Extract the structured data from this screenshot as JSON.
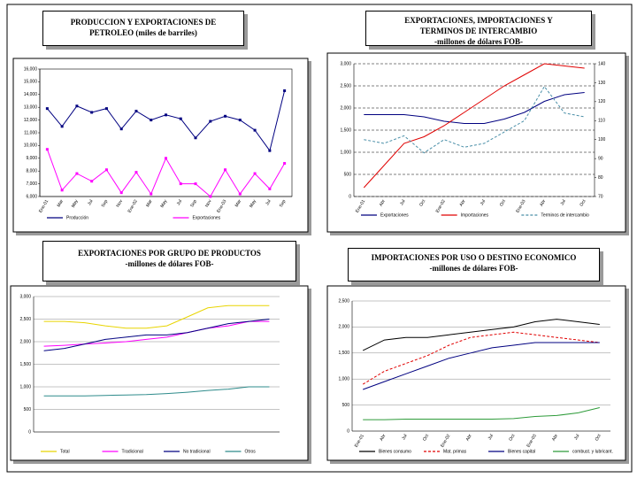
{
  "chart_data": [
    {
      "type": "line",
      "title": "PRODUCCION Y EXPORTACIONES DE PETROLEO (miles de barriles)",
      "categories": [
        "Ene-01",
        "Mar",
        "May",
        "Jul",
        "Sep",
        "Nov",
        "Ene-02",
        "Mar",
        "May",
        "Jul",
        "Sep",
        "Nov",
        "Ene-03",
        "Mar",
        "May",
        "Jul",
        "Sep"
      ],
      "series": [
        {
          "name": "Producción",
          "color": "#000080",
          "values": [
            12900,
            11500,
            13100,
            12600,
            12900,
            11300,
            12700,
            12000,
            12400,
            12100,
            10600,
            11900,
            12300,
            12000,
            11200,
            9600,
            14300
          ]
        },
        {
          "name": "Exportaciones",
          "color": "#ff00ff",
          "values": [
            9700,
            6500,
            7800,
            7200,
            8100,
            6300,
            7900,
            6200,
            9000,
            7000,
            7000,
            6000,
            8100,
            6200,
            7800,
            6600,
            8600
          ]
        }
      ],
      "ylim": [
        6000,
        16000
      ],
      "yticks": [
        {
          "value": 6000,
          "label": "6,000"
        },
        {
          "value": 7000,
          "label": "7,000"
        },
        {
          "value": 8000,
          "label": "8,000"
        },
        {
          "value": 9000,
          "label": "9,000"
        },
        {
          "value": 10000,
          "label": "10,000"
        },
        {
          "value": 11000,
          "label": "11,000"
        },
        {
          "value": 12000,
          "label": "12,000"
        },
        {
          "value": 13000,
          "label": "13,000"
        },
        {
          "value": 14000,
          "label": "14,000"
        },
        {
          "value": 15000,
          "label": "15,000"
        },
        {
          "value": 16000,
          "label": "16,000"
        }
      ],
      "grid": false,
      "markers": true
    },
    {
      "type": "line",
      "title": "EXPORTACIONES, IMPORTACIONES Y TERMINOS DE INTERCAMBIO",
      "subtitle": "-millones de dólares FOB-",
      "categories": [
        "Ene-01",
        "Abr",
        "Jul",
        "Oct",
        "Ene-02",
        "Abr",
        "Jul",
        "Oct",
        "Ene-03",
        "Abr",
        "Jul",
        "Oct"
      ],
      "series": [
        {
          "name": "Exportaciones",
          "color": "#000080",
          "values": [
            1850,
            1850,
            1850,
            1800,
            1700,
            1650,
            1650,
            1750,
            1900,
            2150,
            2300,
            2350
          ]
        },
        {
          "name": "Importaciones",
          "color": "#e00000",
          "values": [
            200,
            700,
            1200,
            1350,
            1600,
            1900,
            2200,
            2500,
            2750,
            3000,
            2950,
            2900
          ]
        },
        {
          "name": "Terminos de intercambio",
          "color": "#4a8fa8",
          "dash": true,
          "axis": "y2",
          "values": [
            100,
            98,
            102,
            93,
            100,
            96,
            98,
            104,
            110,
            128,
            114,
            112
          ]
        }
      ],
      "ylim": [
        0,
        3000
      ],
      "yticks": [
        0,
        500,
        {
          "value": 1000,
          "label": "1,000"
        },
        {
          "value": 1500,
          "label": "1,500"
        },
        {
          "value": 2000,
          "label": "2,000"
        },
        {
          "value": 2500,
          "label": "2,500"
        },
        {
          "value": 3000,
          "label": "3,000"
        }
      ],
      "y2lim": [
        70,
        140
      ],
      "y2ticks": [
        70,
        80,
        90,
        100,
        110,
        120,
        130,
        140
      ],
      "grid": true,
      "markers": false
    },
    {
      "type": "line",
      "title": "EXPORTACIONES POR GRUPO DE PRODUCTOS",
      "subtitle": "-millones de dólares FOB-",
      "categories": [
        null,
        null,
        null,
        null,
        null,
        null,
        null,
        null,
        null,
        null,
        null,
        null
      ],
      "series": [
        {
          "name": "Total",
          "color": "#e8d400",
          "values": [
            2450,
            2450,
            2420,
            2350,
            2300,
            2300,
            2350,
            2550,
            2750,
            2800,
            2800,
            2800
          ]
        },
        {
          "name": "Tradicional",
          "color": "#ff00ff",
          "values": [
            1900,
            1920,
            1950,
            1970,
            2000,
            2050,
            2100,
            2200,
            2300,
            2350,
            2450,
            2450
          ]
        },
        {
          "name": "No tradicional",
          "color": "#000080",
          "values": [
            1800,
            1850,
            1950,
            2050,
            2100,
            2150,
            2150,
            2200,
            2300,
            2400,
            2450,
            2500
          ]
        },
        {
          "name": "Otros",
          "color": "#2e8b8b",
          "values": [
            800,
            800,
            800,
            810,
            820,
            830,
            850,
            880,
            920,
            950,
            1000,
            1000
          ]
        }
      ],
      "ylim": [
        0,
        3000
      ],
      "yticks": [
        0,
        500,
        {
          "value": 1000,
          "label": "1,000"
        },
        {
          "value": 1500,
          "label": "1,500"
        },
        {
          "value": 2000,
          "label": "2,000"
        },
        {
          "value": 2500,
          "label": "2,500"
        },
        {
          "value": 3000,
          "label": "3,000"
        }
      ],
      "grid": true,
      "markers": false
    },
    {
      "type": "line",
      "title": "IMPORTACIONES POR USO O DESTINO ECONOMICO",
      "subtitle": "-millones de dólares FOB-",
      "categories": [
        "Ene-01",
        "Abr",
        "Jul",
        "Oct",
        "Ene-02",
        "Abr",
        "Jul",
        "Oct",
        "Ene-03",
        "Abr",
        "Jul",
        "Oct"
      ],
      "series": [
        {
          "name": "Bienes consumo",
          "color": "#000000",
          "values": [
            1550,
            1750,
            1800,
            1800,
            1850,
            1900,
            1950,
            2000,
            2100,
            2150,
            2100,
            2050
          ]
        },
        {
          "name": "Mat. primas",
          "color": "#e00000",
          "dash": true,
          "values": [
            900,
            1150,
            1300,
            1450,
            1650,
            1800,
            1850,
            1900,
            1850,
            1800,
            1750,
            1700
          ]
        },
        {
          "name": "Bienes capital",
          "color": "#000080",
          "values": [
            800,
            950,
            1100,
            1250,
            1400,
            1500,
            1600,
            1650,
            1700,
            1700,
            1700,
            1700
          ]
        },
        {
          "name": "combust. y lubricant.",
          "color": "#2e9b3a",
          "values": [
            220,
            220,
            230,
            230,
            230,
            230,
            230,
            240,
            280,
            300,
            350,
            450
          ]
        }
      ],
      "ylim": [
        0,
        2500
      ],
      "yticks": [
        0,
        500,
        {
          "value": 1000,
          "label": "1,000"
        },
        {
          "value": 1500,
          "label": "1,500"
        },
        {
          "value": 2000,
          "label": "2,000"
        },
        {
          "value": 2500,
          "label": "2,500"
        }
      ],
      "grid": true,
      "markers": false
    }
  ]
}
